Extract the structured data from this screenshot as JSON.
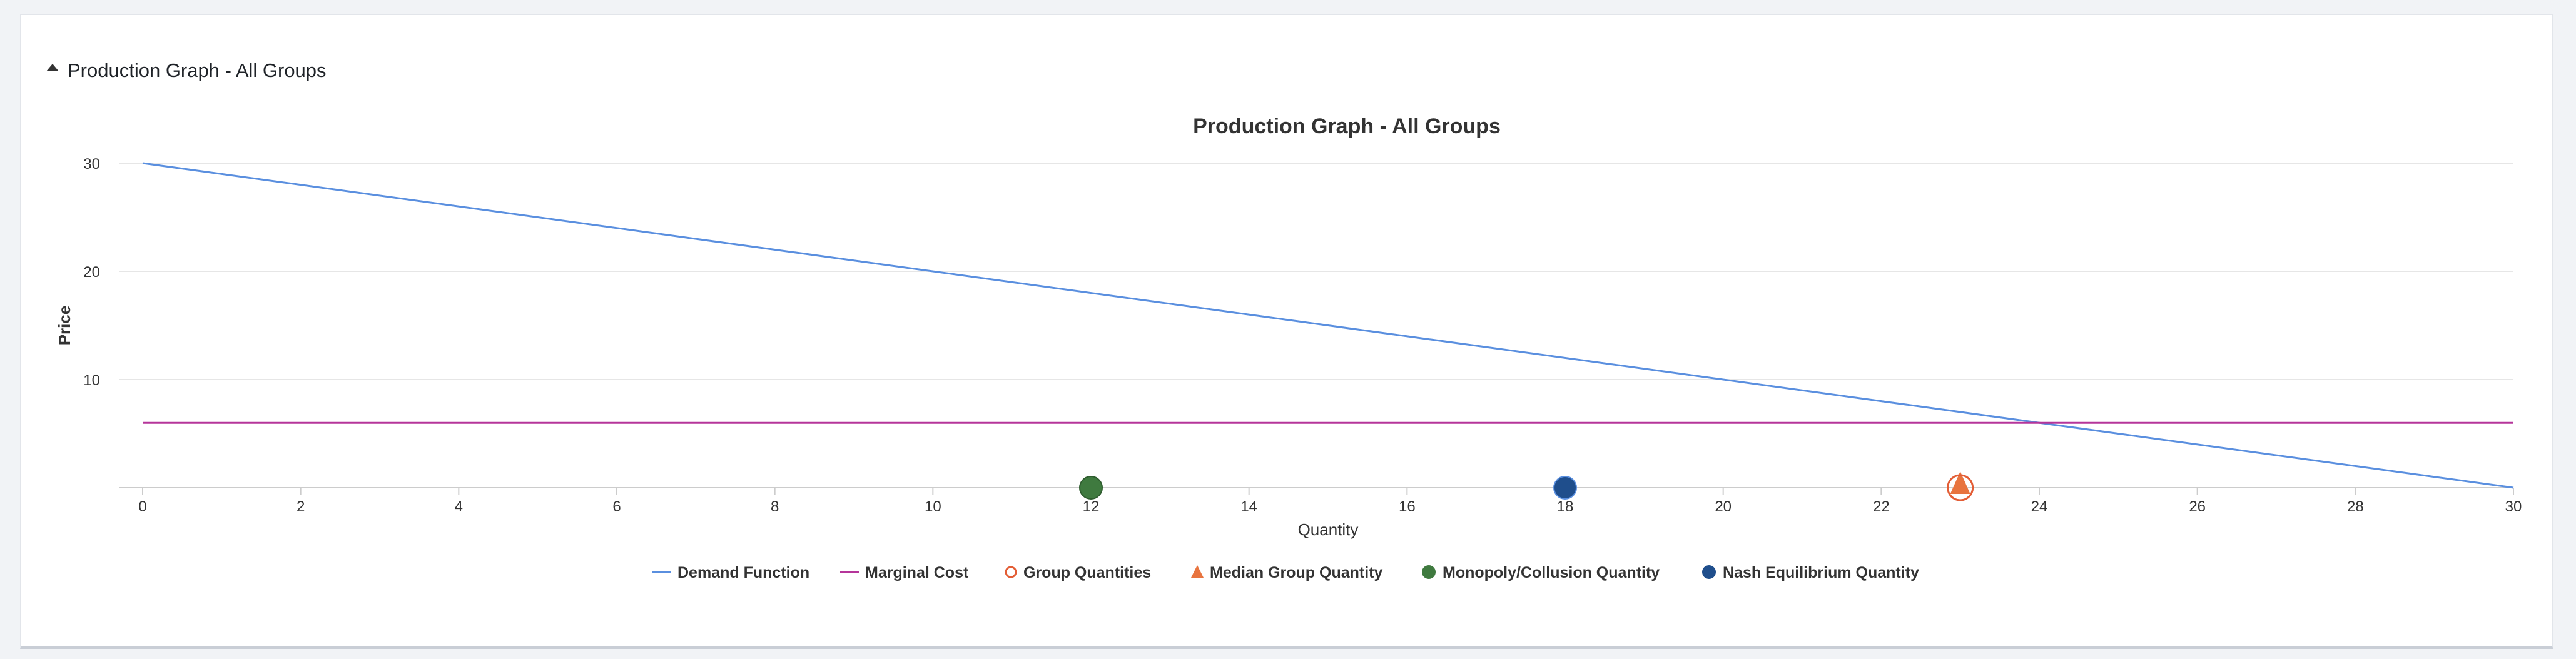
{
  "panel": {
    "title": "Production Graph - All Groups"
  },
  "colors": {
    "demand": "#5a8fdf",
    "marginal_cost": "#b5359a",
    "group": "#e35d35",
    "median": "#e8743f",
    "monopoly": "#3f7a3f",
    "nash": "#1f4e8c",
    "grid": "#e6e6e6",
    "axis": "#cccccc",
    "text": "#333333"
  },
  "chart_data": {
    "type": "line",
    "title": "Production Graph - All Groups",
    "xlabel": "Quantity",
    "ylabel": "Price",
    "xlim": [
      0,
      30
    ],
    "ylim": [
      0,
      30
    ],
    "x_ticks": [
      0,
      2,
      4,
      6,
      8,
      10,
      12,
      14,
      16,
      18,
      20,
      22,
      24,
      26,
      28,
      30
    ],
    "y_ticks": [
      10,
      20,
      30
    ],
    "grid": true,
    "legend_position": "bottom",
    "series": [
      {
        "name": "Demand Function",
        "type": "line",
        "x": [
          0,
          30
        ],
        "y": [
          30,
          0
        ]
      },
      {
        "name": "Marginal Cost",
        "type": "line",
        "x": [
          0,
          30
        ],
        "y": [
          6,
          6
        ]
      },
      {
        "name": "Group Quantities",
        "type": "scatter-hollow",
        "x": [
          23
        ],
        "y": [
          0
        ]
      },
      {
        "name": "Median Group Quantity",
        "type": "scatter-triangle",
        "x": [
          23
        ],
        "y": [
          0
        ]
      },
      {
        "name": "Monopoly/Collusion Quantity",
        "type": "scatter",
        "x": [
          12
        ],
        "y": [
          0
        ]
      },
      {
        "name": "Nash Equilibrium Quantity",
        "type": "scatter",
        "x": [
          18
        ],
        "y": [
          0
        ]
      }
    ]
  }
}
